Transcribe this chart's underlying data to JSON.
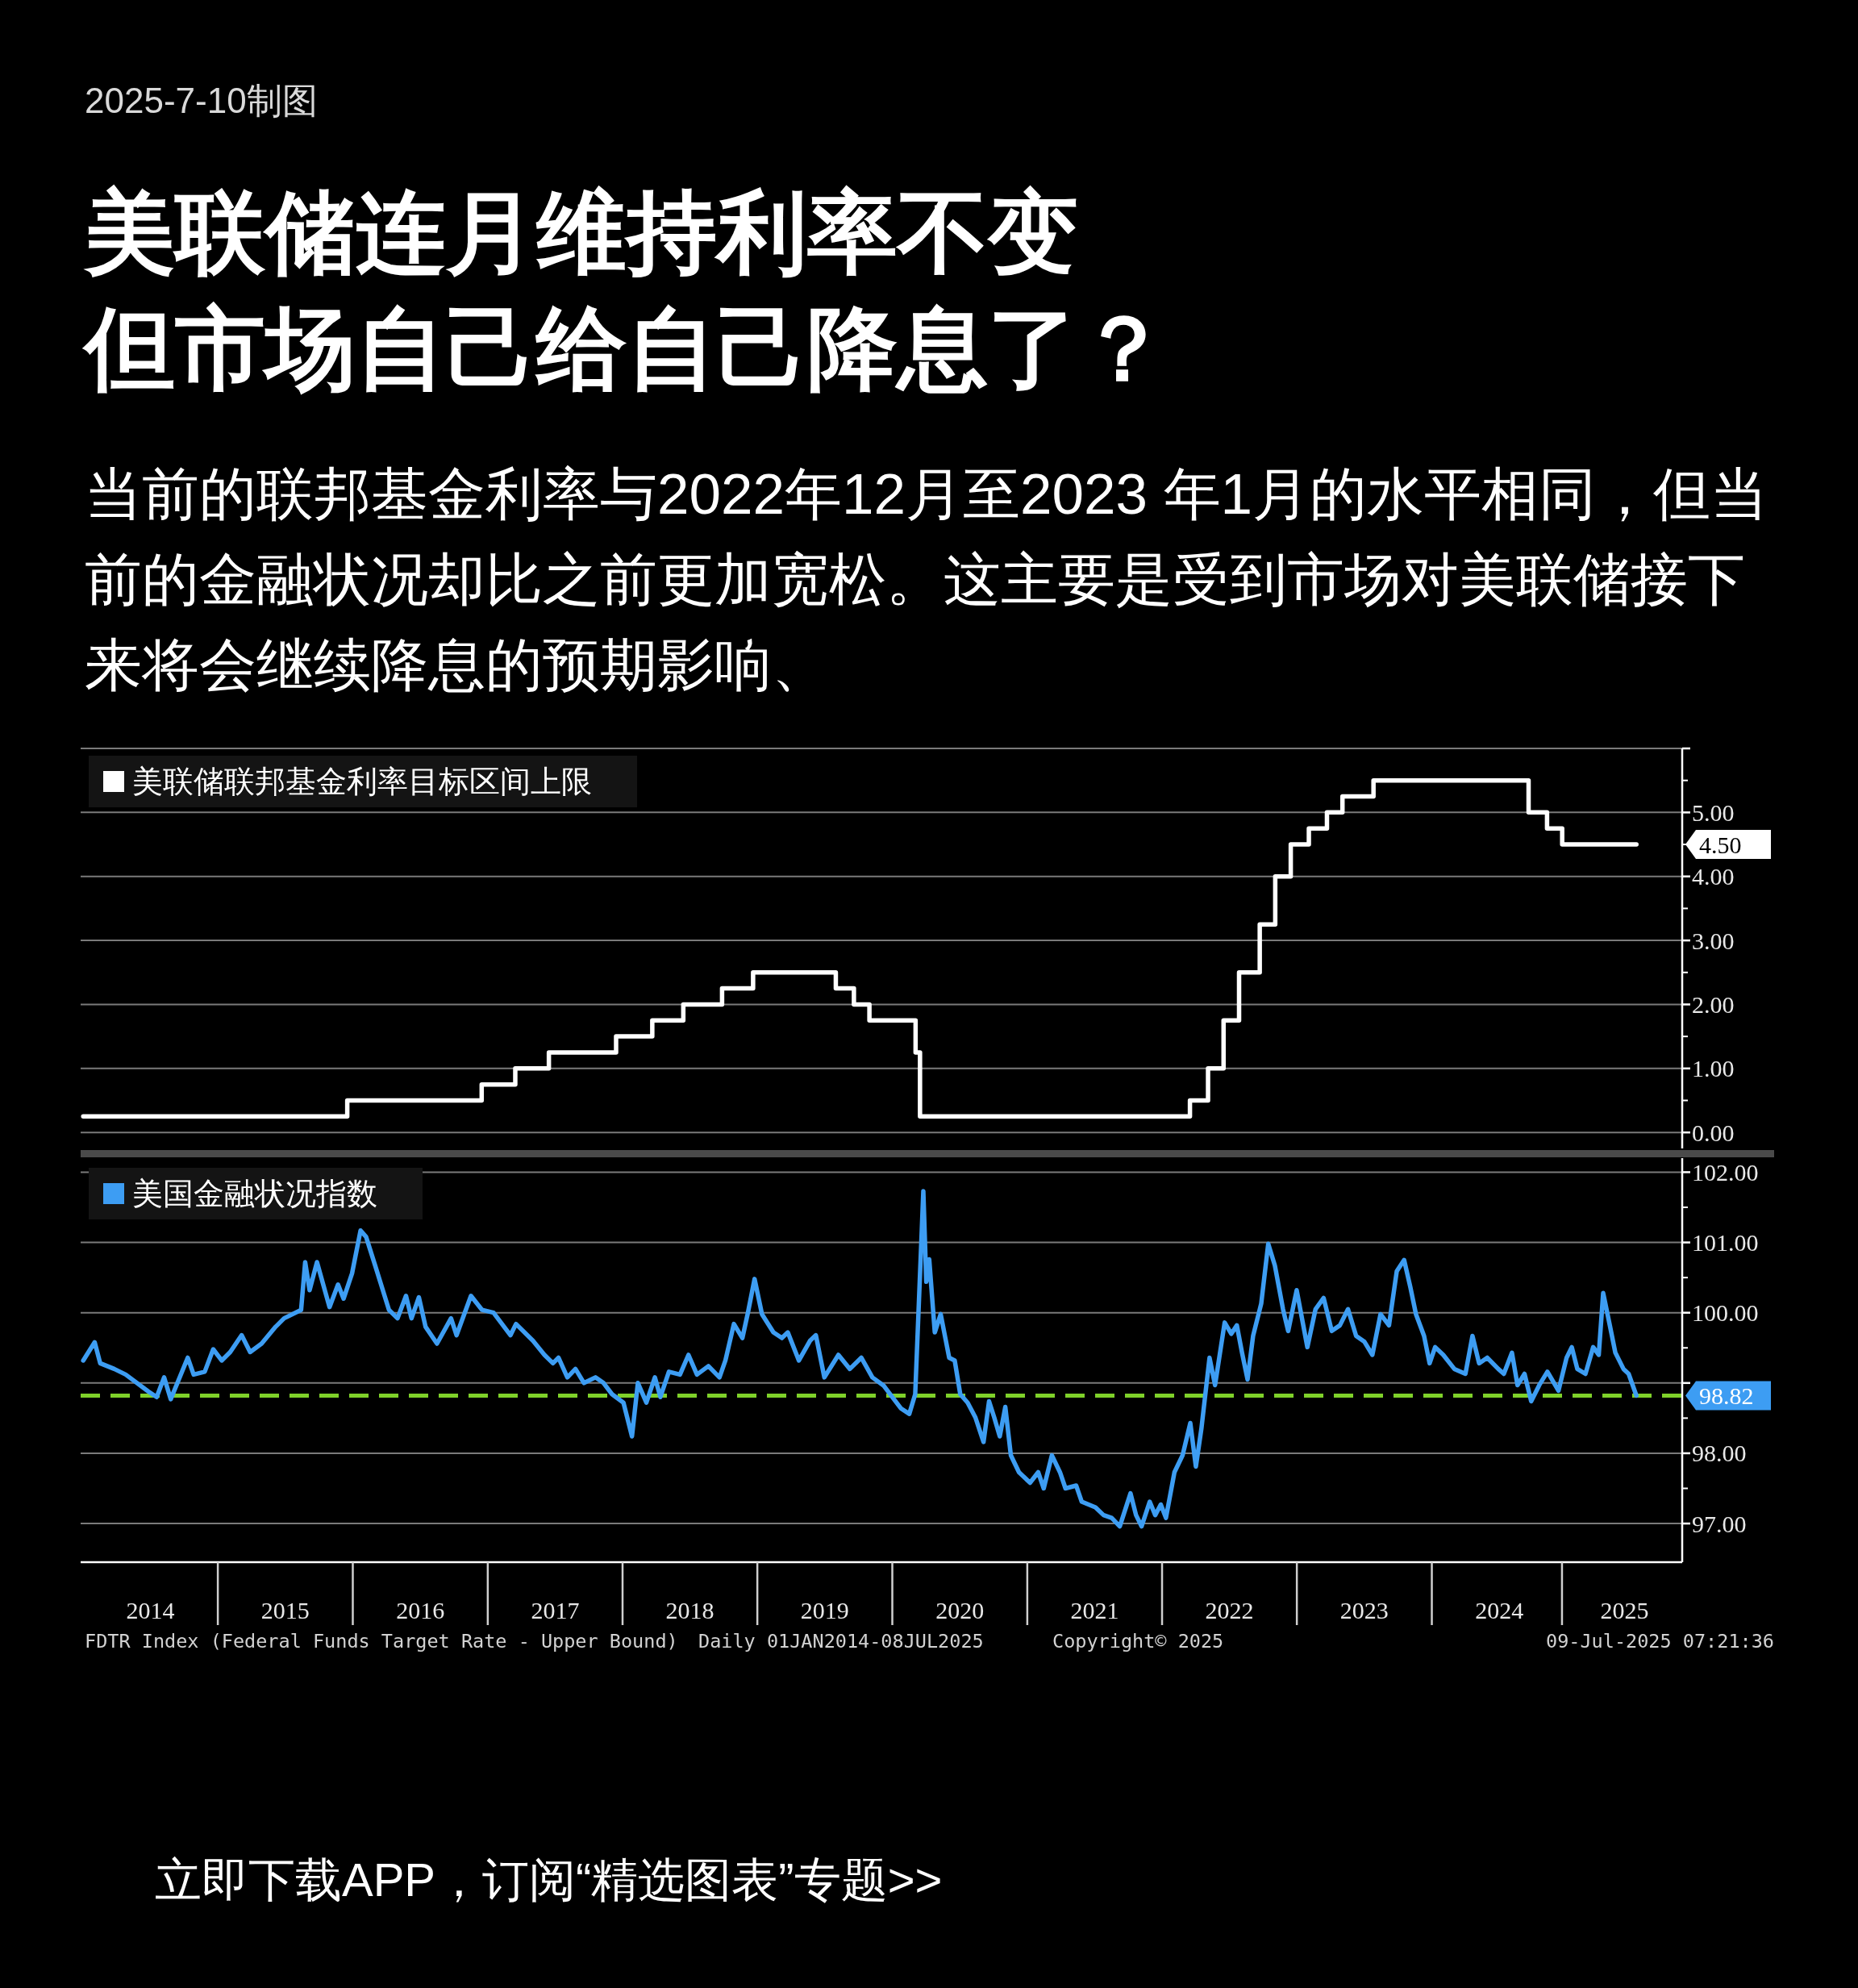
{
  "chart_data": [
    {
      "type": "step",
      "title": "美联储连月维持利率不变但市场自己给自己降息了？",
      "subtitle": "当前的联邦基金利率与2022年12月至2023 年1月的水平相同，但当前的金融状况却比之前更加宽松。这主要是受到市场对美联储接下来将会继续降息的预期影响、",
      "annotations": [
        "2025-7-10制图",
        {
          "text": "4.50",
          "x": "2025-07-08",
          "y": 4.5
        }
      ],
      "x": [
        "2014-01-01",
        "2015-12-17",
        "2016-12-15",
        "2017-03-16",
        "2017-06-15",
        "2017-12-14",
        "2018-03-22",
        "2018-06-14",
        "2018-09-27",
        "2018-12-20",
        "2019-08-01",
        "2019-09-19",
        "2019-10-31",
        "2020-03-04",
        "2020-03-16",
        "2022-03-17",
        "2022-05-05",
        "2022-06-16",
        "2022-07-28",
        "2022-09-22",
        "2022-11-03",
        "2022-12-15",
        "2023-02-02",
        "2023-03-23",
        "2023-05-04",
        "2023-07-27",
        "2024-09-19",
        "2024-11-08",
        "2024-12-19",
        "2025-07-08"
      ],
      "series": [
        {
          "name": "美联储联邦基金利率目标区间上限",
          "color": "#ffffff",
          "values": [
            0.25,
            0.5,
            0.75,
            1.0,
            1.25,
            1.5,
            1.75,
            2.0,
            2.25,
            2.5,
            2.25,
            2.0,
            1.75,
            1.25,
            0.25,
            0.5,
            1.0,
            1.75,
            2.5,
            3.25,
            4.0,
            4.5,
            4.75,
            5.0,
            5.25,
            5.5,
            5.0,
            4.75,
            4.5,
            4.5
          ]
        }
      ],
      "xlim": [
        "2013-12-25",
        "2025-11-09"
      ],
      "ylim": [
        -0.25,
        6
      ],
      "yticks": [
        {
          "value": 0,
          "label": "0.00"
        },
        {
          "value": 1,
          "label": "1.00"
        },
        {
          "value": 2,
          "label": "2.00"
        },
        {
          "value": 3,
          "label": "3.00"
        },
        {
          "value": 4,
          "label": "4.00"
        },
        {
          "value": 5,
          "label": "5.00"
        },
        {
          "value": 6,
          "label": null
        }
      ],
      "grid": "y",
      "legend": "top left",
      "tick_labels": "y"
    },
    {
      "type": "line",
      "annotations": [
        "FDTR Index (Federal Funds Target Rate - Upper Bound)",
        "Daily 01JAN2014-08JUL2025",
        "Copyright© 2025",
        "09-Jul-2025 07:21:36",
        "立即下载APP，订阅“精选图表”专题>>",
        {
          "text": "98.82",
          "x": "2025-07-08",
          "y": 98.82
        }
      ],
      "x": [
        "2014-01-01",
        "2014-02-01",
        "2014-02-16",
        "2014-03-26",
        "2014-04-26",
        "2014-06-26",
        "2014-07-19",
        "2014-08-08",
        "2014-08-26",
        "2014-10-11",
        "2014-10-27",
        "2014-11-26",
        "2014-12-19",
        "2015-01-11",
        "2015-02-03",
        "2015-03-06",
        "2015-03-29",
        "2015-04-29",
        "2015-06-06",
        "2015-06-29",
        "2015-08-14",
        "2015-08-25",
        "2015-09-06",
        "2015-09-26",
        "2015-10-30",
        "2015-11-22",
        "2015-12-07",
        "2015-12-30",
        "2016-01-22",
        "2016-02-06",
        "2016-03-01",
        "2016-04-08",
        "2016-05-01",
        "2016-05-24",
        "2016-06-08",
        "2016-06-28",
        "2016-07-16",
        "2016-08-16",
        "2016-09-23",
        "2016-10-08",
        "2016-11-16",
        "2016-12-16",
        "2017-01-16",
        "2017-03-03",
        "2017-03-18",
        "2017-05-03",
        "2017-06-03",
        "2017-06-26",
        "2017-07-11",
        "2017-08-04",
        "2017-08-26",
        "2017-09-18",
        "2017-10-19",
        "2017-11-10",
        "2017-12-03",
        "2018-01-03",
        "2018-01-26",
        "2018-02-11",
        "2018-03-06",
        "2018-03-29",
        "2018-04-13",
        "2018-05-06",
        "2018-06-05",
        "2018-06-28",
        "2018-07-21",
        "2018-08-21",
        "2018-09-20",
        "2018-10-06",
        "2018-10-29",
        "2018-11-21",
        "2018-12-06",
        "2018-12-24",
        "2019-01-13",
        "2019-02-13",
        "2019-03-08",
        "2019-03-24",
        "2019-04-23",
        "2019-05-23",
        "2019-06-08",
        "2019-07-01",
        "2019-08-08",
        "2019-09-08",
        "2019-10-09",
        "2019-11-08",
        "2019-12-09",
        "2020-01-24",
        "2020-02-16",
        "2020-03-03",
        "2020-03-25",
        "2020-04-02",
        "2020-04-10",
        "2020-04-25",
        "2020-05-11",
        "2020-06-03",
        "2020-06-18",
        "2020-07-03",
        "2020-07-23",
        "2020-08-13",
        "2020-09-04",
        "2020-09-19",
        "2020-10-03",
        "2020-10-18",
        "2020-11-02",
        "2020-11-17",
        "2020-12-09",
        "2021-01-08",
        "2021-01-30",
        "2021-02-14",
        "2021-03-08",
        "2021-03-30",
        "2021-04-14",
        "2021-05-13",
        "2021-05-28",
        "2021-07-04",
        "2021-07-26",
        "2021-08-17",
        "2021-09-08",
        "2021-10-07",
        "2021-10-22",
        "2021-11-06",
        "2021-11-28",
        "2021-12-13",
        "2021-12-28",
        "2022-01-11",
        "2022-02-03",
        "2022-02-25",
        "2022-03-18",
        "2022-04-02",
        "2022-04-17",
        "2022-05-09",
        "2022-05-24",
        "2022-06-19",
        "2022-07-07",
        "2022-07-22",
        "2022-08-05",
        "2022-08-20",
        "2022-09-04",
        "2022-09-26",
        "2022-10-15",
        "2022-11-02",
        "2022-11-24",
        "2022-12-08",
        "2022-12-31",
        "2023-01-29",
        "2023-02-20",
        "2023-03-14",
        "2023-04-05",
        "2023-04-27",
        "2023-05-19",
        "2023-06-10",
        "2023-07-02",
        "2023-07-24",
        "2023-08-15",
        "2023-09-07",
        "2023-09-28",
        "2023-10-18",
        "2023-11-04",
        "2023-11-19",
        "2023-12-11",
        "2023-12-26",
        "2024-01-10",
        "2024-02-01",
        "2024-03-02",
        "2024-04-01",
        "2024-04-20",
        "2024-05-08",
        "2024-05-30",
        "2024-06-29",
        "2024-07-14",
        "2024-08-05",
        "2024-08-20",
        "2024-09-08",
        "2024-09-26",
        "2024-10-18",
        "2024-11-09",
        "2024-12-09",
        "2024-12-31",
        "2025-01-14",
        "2025-01-29",
        "2025-02-20",
        "2025-03-13",
        "2025-03-28",
        "2025-04-09",
        "2025-04-27",
        "2025-05-12",
        "2025-06-03",
        "2025-06-17",
        "2025-07-08"
      ],
      "series": [
        {
          "name": "美国金融状况指数",
          "color": "#3d9df3",
          "values": [
            99.32,
            99.58,
            99.28,
            99.2,
            99.12,
            98.88,
            98.8,
            99.08,
            98.77,
            99.36,
            99.12,
            99.16,
            99.48,
            99.32,
            99.44,
            99.68,
            99.44,
            99.56,
            99.8,
            99.92,
            100.04,
            100.72,
            100.32,
            100.72,
            100.08,
            100.4,
            100.2,
            100.56,
            101.17,
            101.08,
            100.68,
            100.04,
            99.92,
            100.24,
            99.92,
            100.22,
            99.8,
            99.56,
            99.92,
            99.68,
            100.24,
            100.04,
            100.0,
            99.68,
            99.84,
            99.6,
            99.4,
            99.28,
            99.36,
            99.08,
            99.2,
            99.0,
            99.08,
            99.0,
            98.84,
            98.72,
            98.24,
            99.0,
            98.72,
            99.08,
            98.8,
            99.16,
            99.12,
            99.4,
            99.12,
            99.24,
            99.08,
            99.32,
            99.84,
            99.64,
            100.0,
            100.48,
            99.98,
            99.72,
            99.64,
            99.72,
            99.32,
            99.6,
            99.68,
            99.08,
            99.4,
            99.2,
            99.36,
            99.08,
            98.96,
            98.64,
            98.56,
            98.84,
            101.73,
            100.44,
            100.76,
            99.72,
            99.98,
            99.36,
            99.32,
            98.84,
            98.72,
            98.51,
            98.16,
            98.74,
            98.51,
            98.24,
            98.66,
            97.97,
            97.73,
            97.58,
            97.73,
            97.5,
            97.97,
            97.73,
            97.5,
            97.54,
            97.31,
            97.23,
            97.12,
            97.08,
            96.96,
            97.43,
            97.12,
            96.96,
            97.31,
            97.12,
            97.27,
            97.08,
            97.73,
            97.97,
            98.43,
            97.81,
            98.35,
            99.36,
            98.97,
            99.86,
            99.7,
            99.82,
            99.43,
            99.05,
            99.67,
            100.13,
            100.98,
            100.67,
            100.05,
            99.74,
            100.32,
            99.51,
            100.05,
            100.21,
            99.74,
            99.82,
            100.05,
            99.67,
            99.59,
            99.4,
            99.98,
            99.82,
            100.59,
            100.75,
            100.36,
            99.98,
            99.67,
            99.28,
            99.51,
            99.4,
            99.2,
            99.13,
            99.67,
            99.28,
            99.36,
            99.2,
            99.13,
            99.43,
            98.97,
            99.13,
            98.74,
            98.97,
            99.16,
            98.89,
            99.36,
            99.51,
            99.2,
            99.13,
            99.51,
            99.4,
            100.28,
            99.82,
            99.43,
            99.2,
            99.13,
            98.82
          ]
        }
      ],
      "xlim": [
        "2013-12-25",
        "2025-11-09"
      ],
      "ylim": [
        96.45,
        102.2
      ],
      "yticks": [
        {
          "value": 97,
          "label": "97.00"
        },
        {
          "value": 98,
          "label": "98.00"
        },
        {
          "value": 99,
          "label": null
        },
        {
          "value": 100,
          "label": "100.00"
        },
        {
          "value": 101,
          "label": "101.00"
        },
        {
          "value": 102,
          "label": "102.00"
        }
      ],
      "xticks": [
        {
          "value": "2014-07-02",
          "label": "2014"
        },
        {
          "value": "2015-07-02",
          "label": "2015"
        },
        {
          "value": "2016-07-02",
          "label": "2016"
        },
        {
          "value": "2017-07-02",
          "label": "2017"
        },
        {
          "value": "2018-07-02",
          "label": "2018"
        },
        {
          "value": "2019-07-02",
          "label": "2019"
        },
        {
          "value": "2020-07-02",
          "label": "2020"
        },
        {
          "value": "2021-07-02",
          "label": "2021"
        },
        {
          "value": "2022-07-02",
          "label": "2022"
        },
        {
          "value": "2023-07-02",
          "label": "2023"
        },
        {
          "value": "2024-07-02",
          "label": "2024"
        },
        {
          "value": "2025-06-06",
          "label": "2025"
        }
      ],
      "ref_lines": [
        {
          "axis": "y",
          "value": 98.82,
          "color": "#7fd12a",
          "line_style": "dashed"
        }
      ],
      "grid": "y",
      "legend": "top left"
    }
  ]
}
